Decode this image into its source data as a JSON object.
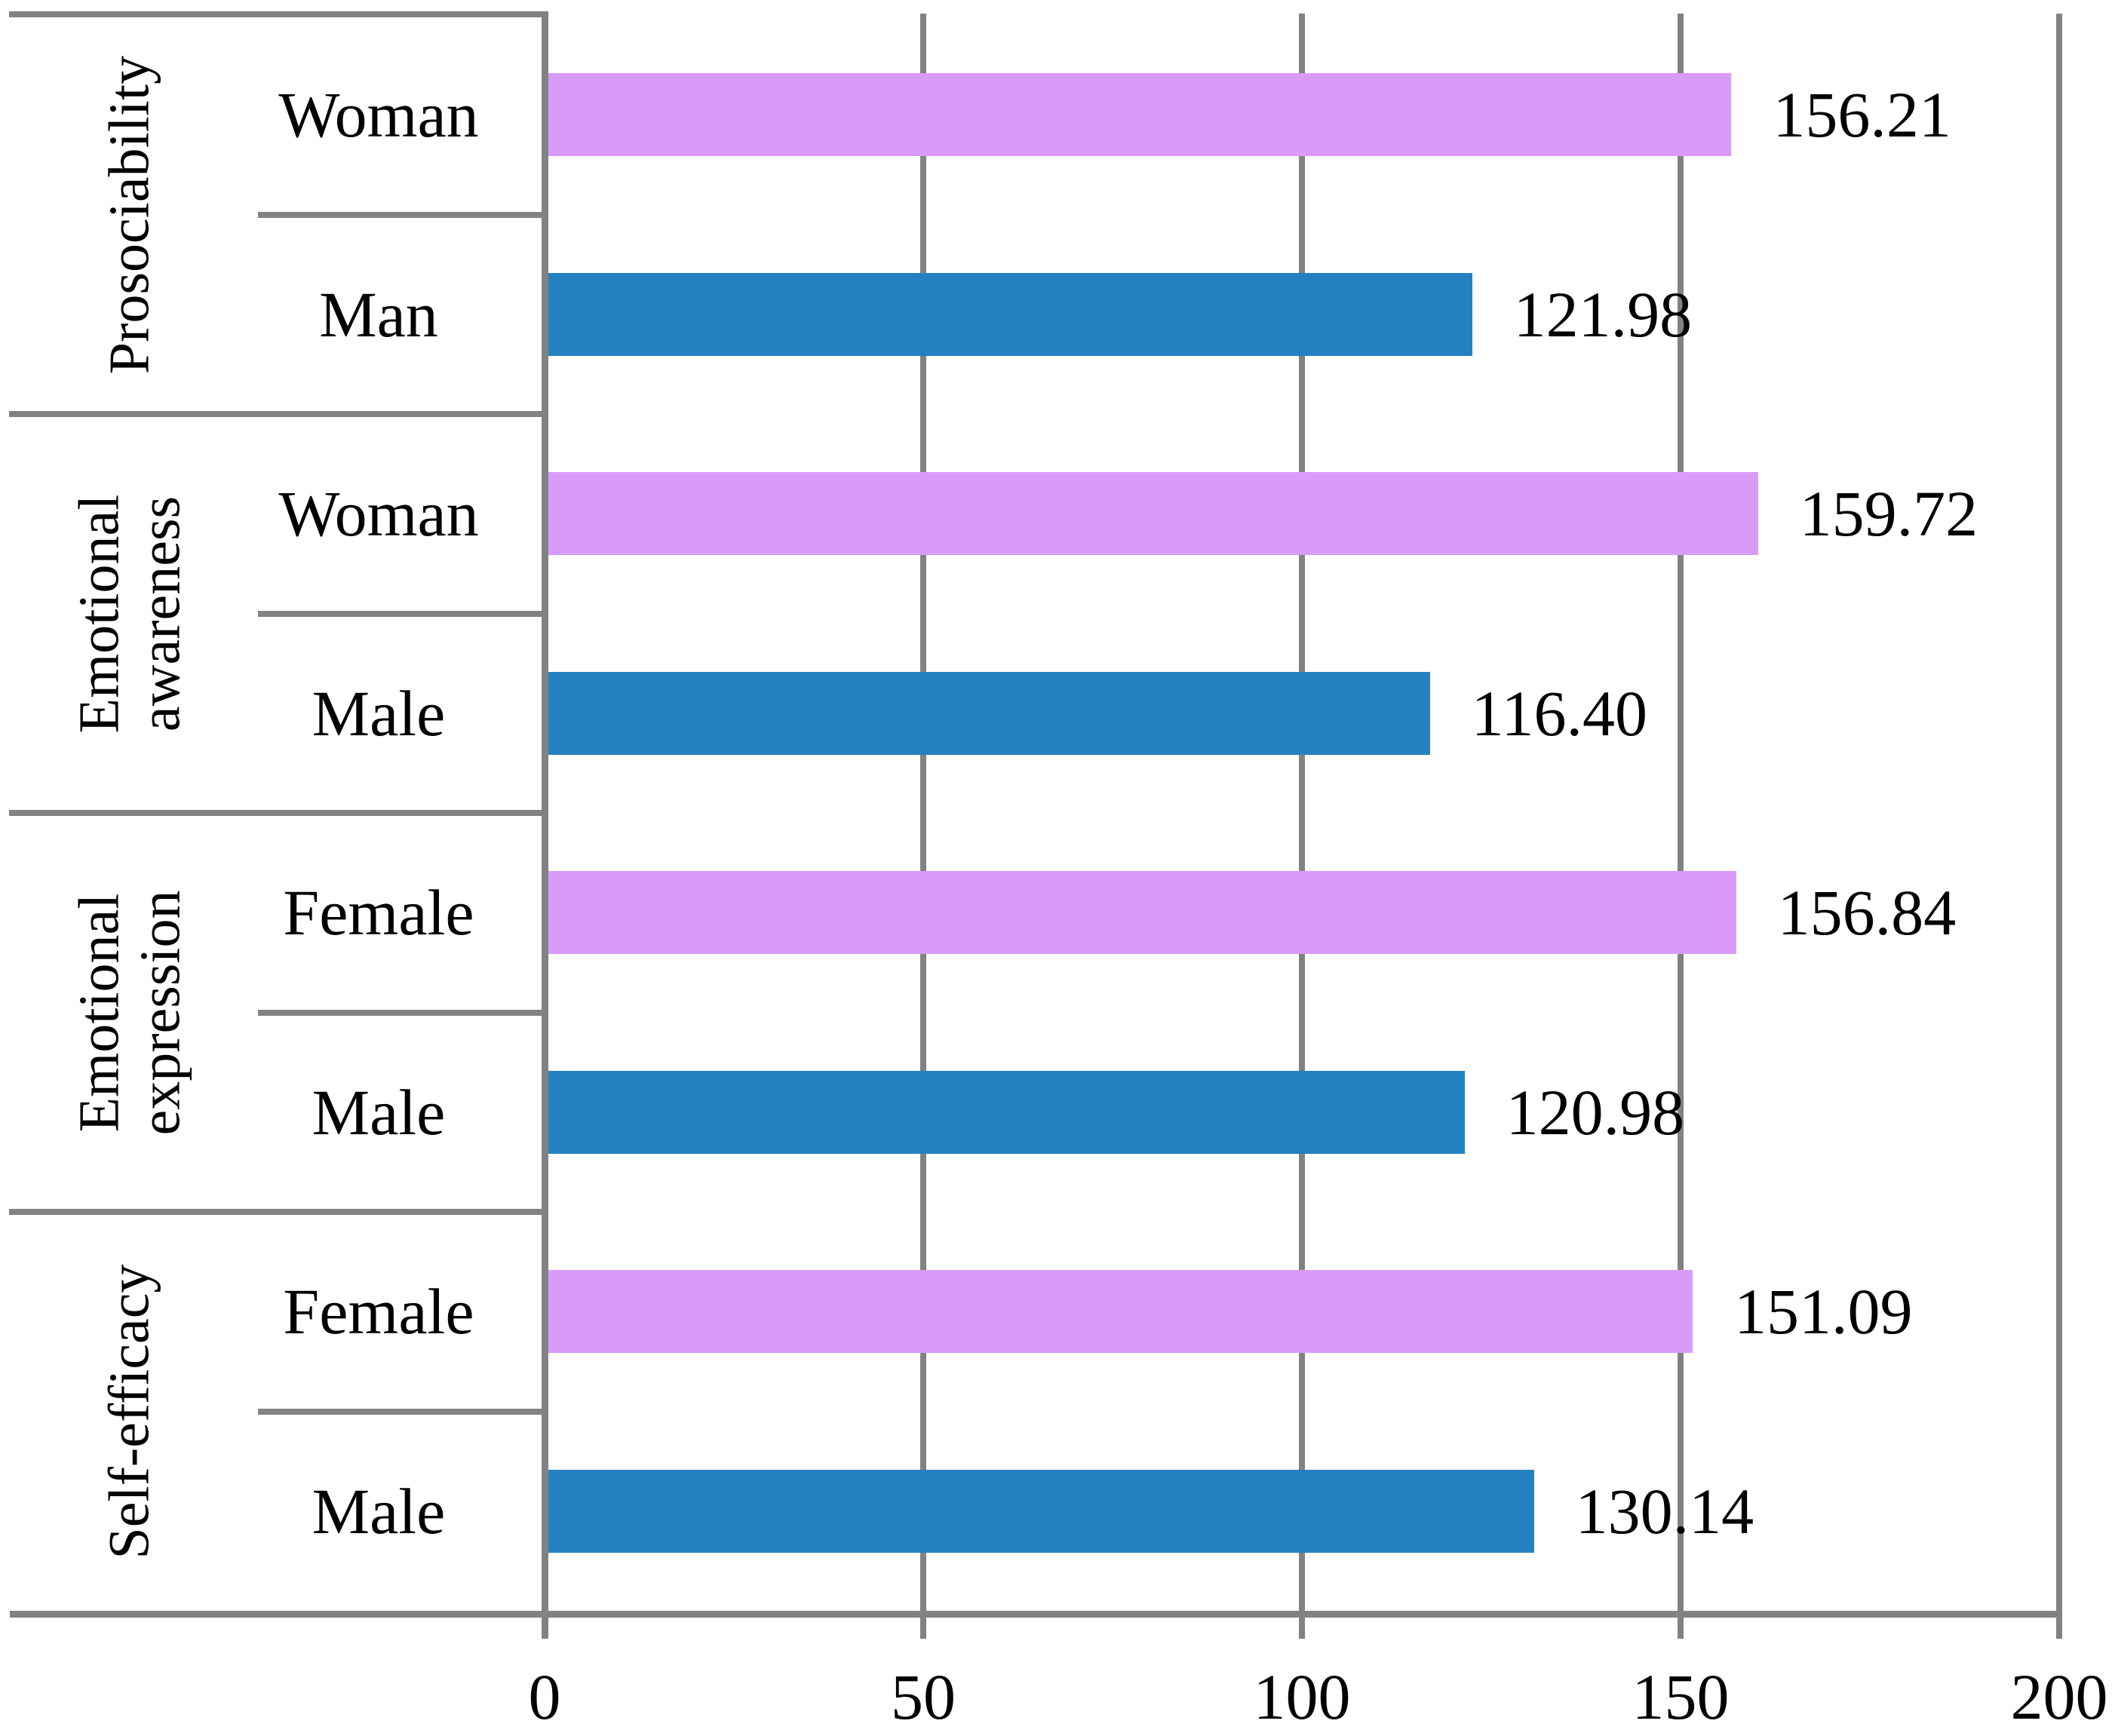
{
  "chart_data": {
    "type": "bar",
    "orientation": "horizontal",
    "title": "",
    "grid": true,
    "legend_position": "none",
    "x_axis": {
      "min": 0,
      "max": 200,
      "ticks": [
        {
          "label": "0",
          "value": 0
        },
        {
          "label": "50",
          "value": 50
        },
        {
          "label": "100",
          "value": 100
        },
        {
          "label": "150",
          "value": 150
        },
        {
          "label": "200",
          "value": 200
        }
      ]
    },
    "groups": [
      {
        "label": "Prosociability",
        "bars": [
          {
            "category": "Woman",
            "value": 156.21,
            "value_label": "156.21",
            "series": "female"
          },
          {
            "category": "Man",
            "value": 121.98,
            "value_label": "121.98",
            "series": "male"
          }
        ]
      },
      {
        "label": "Emotional awareness",
        "bars": [
          {
            "category": "Woman",
            "value": 159.72,
            "value_label": "159.72",
            "series": "female"
          },
          {
            "category": "Male",
            "value": 116.4,
            "value_label": "116.40",
            "series": "male"
          }
        ]
      },
      {
        "label": "Emotional expression",
        "bars": [
          {
            "category": "Female",
            "value": 156.84,
            "value_label": "156.84",
            "series": "female"
          },
          {
            "category": "Male",
            "value": 120.98,
            "value_label": "120.98",
            "series": "male"
          }
        ]
      },
      {
        "label": "Self-efficacy",
        "bars": [
          {
            "category": "Female",
            "value": 151.09,
            "value_label": "151.09",
            "series": "female"
          },
          {
            "category": "Male",
            "value": 130.14,
            "value_label": "130.14",
            "series": "male"
          }
        ]
      }
    ],
    "colors": {
      "female": "#d99bf8",
      "male": "#2481c1",
      "grid": "#828282",
      "text": "#000000",
      "background": "#ffffff"
    }
  }
}
